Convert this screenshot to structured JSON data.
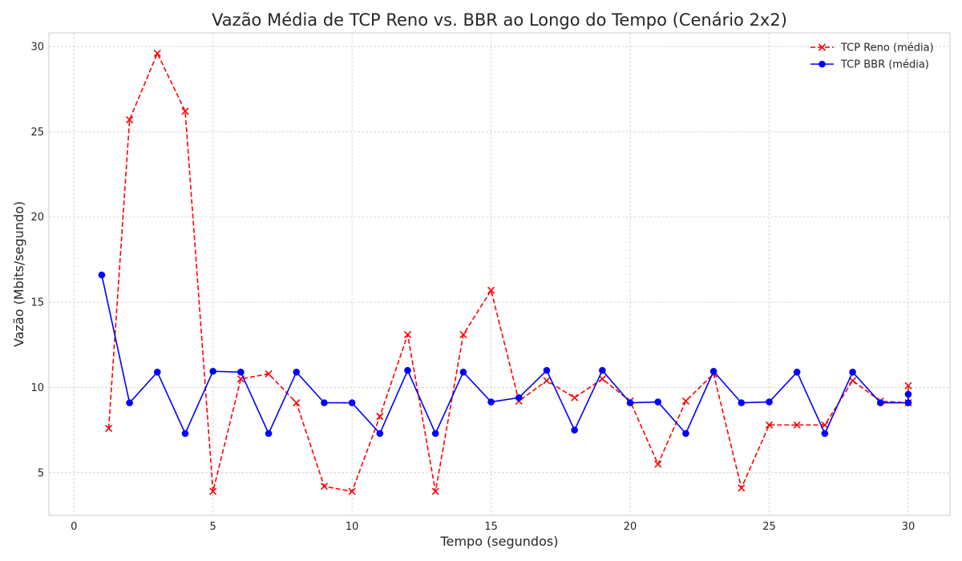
{
  "chart_data": {
    "type": "line",
    "title": "Vazão Média de TCP Reno vs. BBR ao Longo do Tempo (Cenário 2x2)",
    "xlabel": "Tempo (segundos)",
    "ylabel": "Vazão (Mbits/segundo)",
    "xlim": [
      -0.9,
      31.5
    ],
    "ylim": [
      2.5,
      30.8
    ],
    "xticks": [
      0,
      5,
      10,
      15,
      20,
      25,
      30
    ],
    "yticks": [
      5,
      10,
      15,
      20,
      25,
      30
    ],
    "x_tick_labels": [
      "0",
      "5",
      "10",
      "15",
      "20",
      "25",
      "30"
    ],
    "y_tick_labels": [
      "5",
      "10",
      "15",
      "20",
      "25",
      "30"
    ],
    "grid": true,
    "legend_position": "top-right",
    "series": [
      {
        "name": "TCP Reno (média)",
        "color": "#ff0000",
        "linestyle": "dashed",
        "marker": "x",
        "x": [
          1.25,
          2,
          3,
          4,
          5,
          6,
          7,
          8,
          9,
          10,
          11,
          12,
          13,
          14,
          15,
          16,
          17,
          18,
          19,
          20,
          21,
          22,
          23,
          24,
          25,
          26,
          27,
          28,
          29,
          30,
          30
        ],
        "y": [
          7.6,
          25.7,
          29.6,
          26.2,
          3.9,
          10.5,
          10.8,
          9.1,
          4.2,
          3.9,
          8.3,
          13.1,
          3.9,
          13.1,
          15.7,
          9.2,
          10.4,
          9.4,
          10.5,
          9.2,
          5.5,
          9.2,
          10.8,
          4.1,
          7.8,
          7.8,
          7.8,
          10.4,
          9.2,
          9.1,
          10.1
        ]
      },
      {
        "name": "TCP BBR (média)",
        "color": "#0000ff",
        "linestyle": "solid",
        "marker": "o",
        "x": [
          1,
          2,
          3,
          4,
          5,
          6,
          7,
          8,
          9,
          10,
          11,
          12,
          13,
          14,
          15,
          16,
          17,
          18,
          19,
          20,
          21,
          22,
          23,
          24,
          25,
          26,
          27,
          28,
          29,
          30,
          30
        ],
        "y": [
          16.6,
          9.1,
          10.9,
          7.3,
          10.95,
          10.9,
          7.3,
          10.9,
          9.1,
          9.1,
          7.3,
          11.0,
          7.3,
          10.9,
          9.15,
          9.4,
          11.0,
          7.5,
          11.0,
          9.1,
          9.15,
          7.3,
          10.95,
          9.1,
          9.15,
          10.9,
          7.3,
          10.9,
          9.1,
          9.1,
          9.6
        ]
      }
    ]
  }
}
